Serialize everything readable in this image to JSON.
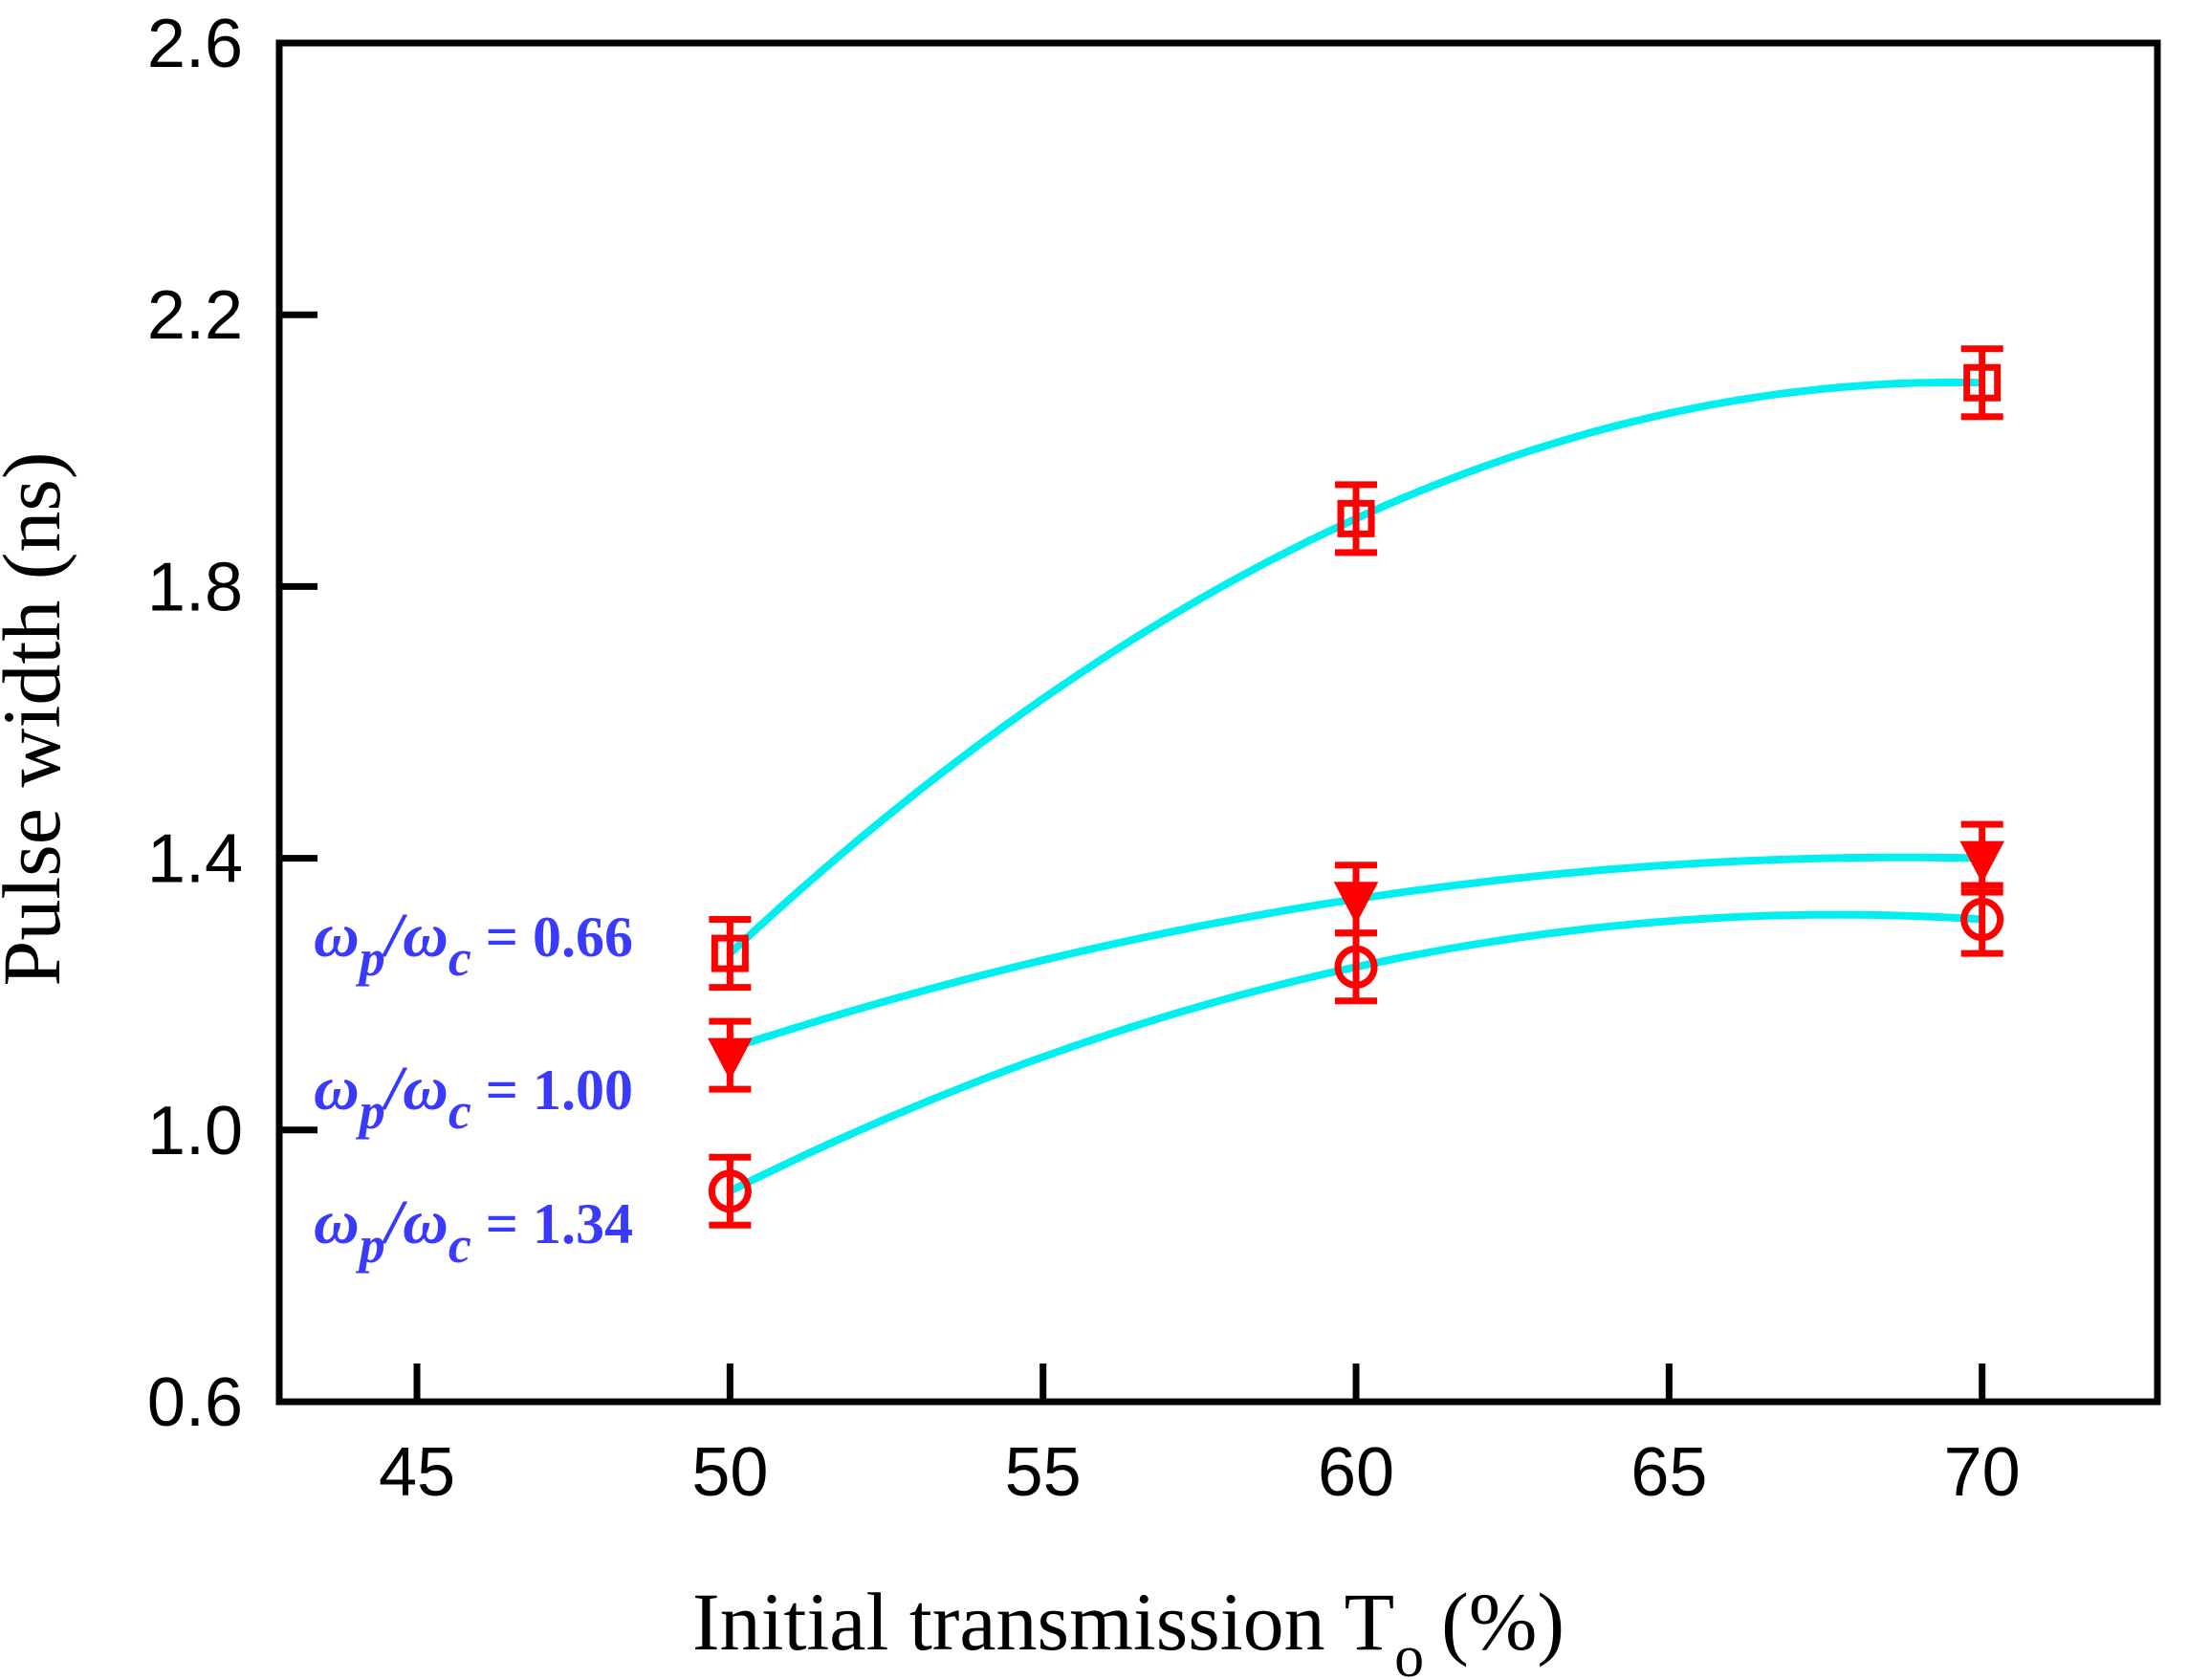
{
  "chart_data": {
    "type": "scatter",
    "title": "",
    "xlabel": "Initial transmission T",
    "xlabel_sub": "o",
    "xlabel_unit": "(%)",
    "ylabel": "Pulse width  (ns)",
    "xlim": [
      42.8,
      72.8
    ],
    "ylim": [
      0.6,
      2.6
    ],
    "xticks": [
      45,
      50,
      55,
      60,
      65,
      70
    ],
    "yticks": [
      0.6,
      1.0,
      1.4,
      1.8,
      2.2,
      2.6
    ],
    "xtick_labels": [
      "45",
      "50",
      "55",
      "60",
      "65",
      "70"
    ],
    "ytick_labels": [
      "0.6",
      "1.0",
      "1.4",
      "1.8",
      "2.2",
      "2.6"
    ],
    "marker_color": "#ff0000",
    "fit_color": "#00f0f0",
    "label_color": "#3a3aff",
    "series": [
      {
        "name": "ωp/ωc = 0.66",
        "label_prefix": "ω",
        "label_sub1": "p",
        "label_slash": "/ω",
        "label_sub2": "c",
        "label_value": " = 0.66",
        "marker": "square",
        "x": [
          50,
          60,
          70
        ],
        "y": [
          1.26,
          1.9,
          2.1
        ],
        "err": [
          0.05,
          0.05,
          0.05
        ],
        "fit": [
          50,
          60,
          70,
          1.26,
          1.9,
          2.1
        ]
      },
      {
        "name": "ωp/ωc = 1.00",
        "label_prefix": "ω",
        "label_sub1": "p",
        "label_slash": "/ω",
        "label_sub2": "c",
        "label_value": " = 1.00",
        "marker": "triangle-down",
        "x": [
          50,
          60,
          70
        ],
        "y": [
          1.11,
          1.34,
          1.4
        ],
        "err": [
          0.05,
          0.05,
          0.05
        ],
        "fit": [
          50,
          60,
          70,
          1.12,
          1.34,
          1.4
        ]
      },
      {
        "name": "ωp/ωc = 1.34",
        "label_prefix": "ω",
        "label_sub1": "p",
        "label_slash": "/ω",
        "label_sub2": "c",
        "label_value": " = 1.34",
        "marker": "circle",
        "x": [
          50,
          60,
          70
        ],
        "y": [
          0.91,
          1.24,
          1.31
        ],
        "err": [
          0.05,
          0.05,
          0.05
        ],
        "fit": [
          50,
          60,
          70,
          0.91,
          1.24,
          1.31
        ]
      }
    ]
  }
}
